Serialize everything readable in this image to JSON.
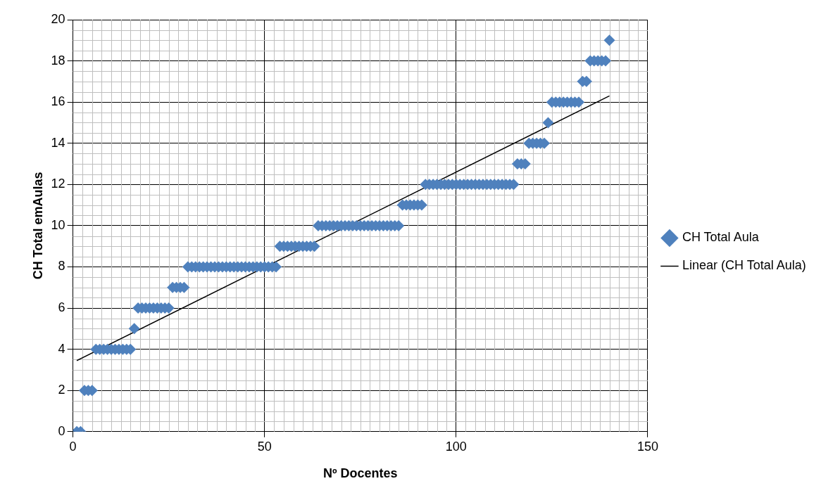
{
  "chart_data": {
    "type": "scatter",
    "xlabel": "Nº Docentes",
    "ylabel": "CH Total emAulas",
    "xlim": [
      0,
      150
    ],
    "xticks": [
      0,
      50,
      100,
      150
    ],
    "ylim": [
      0,
      20
    ],
    "yticks": [
      0,
      2,
      4,
      6,
      8,
      10,
      12,
      14,
      16,
      18,
      20
    ],
    "grid": true,
    "legend": "right",
    "marker": "diamond",
    "series": [
      {
        "name": "CH Total Aula",
        "color": "#4f81bd",
        "x": [
          1,
          2,
          3,
          4,
          5,
          6,
          7,
          8,
          9,
          10,
          11,
          12,
          13,
          14,
          15,
          16,
          17,
          18,
          19,
          20,
          21,
          22,
          23,
          24,
          25,
          26,
          27,
          28,
          29,
          30,
          31,
          32,
          33,
          34,
          35,
          36,
          37,
          38,
          39,
          40,
          41,
          42,
          43,
          44,
          45,
          46,
          47,
          48,
          49,
          50,
          51,
          52,
          53,
          54,
          55,
          56,
          57,
          58,
          59,
          60,
          61,
          62,
          63,
          64,
          65,
          66,
          67,
          68,
          69,
          70,
          71,
          72,
          73,
          74,
          75,
          76,
          77,
          78,
          79,
          80,
          81,
          82,
          83,
          84,
          85,
          86,
          87,
          88,
          89,
          90,
          91,
          92,
          93,
          94,
          95,
          96,
          97,
          98,
          99,
          100,
          101,
          102,
          103,
          104,
          105,
          106,
          107,
          108,
          109,
          110,
          111,
          112,
          113,
          114,
          115,
          116,
          117,
          118,
          119,
          120,
          121,
          122,
          123,
          124,
          125,
          126,
          127,
          128,
          129,
          130,
          131,
          132,
          133,
          134,
          135,
          136,
          137,
          138,
          139,
          140
        ],
        "values": [
          0,
          0,
          2,
          2,
          2,
          4,
          4,
          4,
          4,
          4,
          4,
          4,
          4,
          4,
          4,
          5,
          6,
          6,
          6,
          6,
          6,
          6,
          6,
          6,
          6,
          7,
          7,
          7,
          7,
          8,
          8,
          8,
          8,
          8,
          8,
          8,
          8,
          8,
          8,
          8,
          8,
          8,
          8,
          8,
          8,
          8,
          8,
          8,
          8,
          8,
          8,
          8,
          8,
          9,
          9,
          9,
          9,
          9,
          9,
          9,
          9,
          9,
          9,
          10,
          10,
          10,
          10,
          10,
          10,
          10,
          10,
          10,
          10,
          10,
          10,
          10,
          10,
          10,
          10,
          10,
          10,
          10,
          10,
          10,
          10,
          11,
          11,
          11,
          11,
          11,
          11,
          12,
          12,
          12,
          12,
          12,
          12,
          12,
          12,
          12,
          12,
          12,
          12,
          12,
          12,
          12,
          12,
          12,
          12,
          12,
          12,
          12,
          12,
          12,
          12,
          13,
          13,
          13,
          14,
          14,
          14,
          14,
          14,
          15,
          16,
          16,
          16,
          16,
          16,
          16,
          16,
          16,
          17,
          17,
          18,
          18,
          18,
          18,
          18,
          19
        ]
      },
      {
        "name": "Linear (CH Total Aula)",
        "type": "line",
        "color": "#000000",
        "x": [
          1,
          140
        ],
        "values": [
          3.45,
          16.3
        ],
        "marker": "none"
      }
    ]
  }
}
